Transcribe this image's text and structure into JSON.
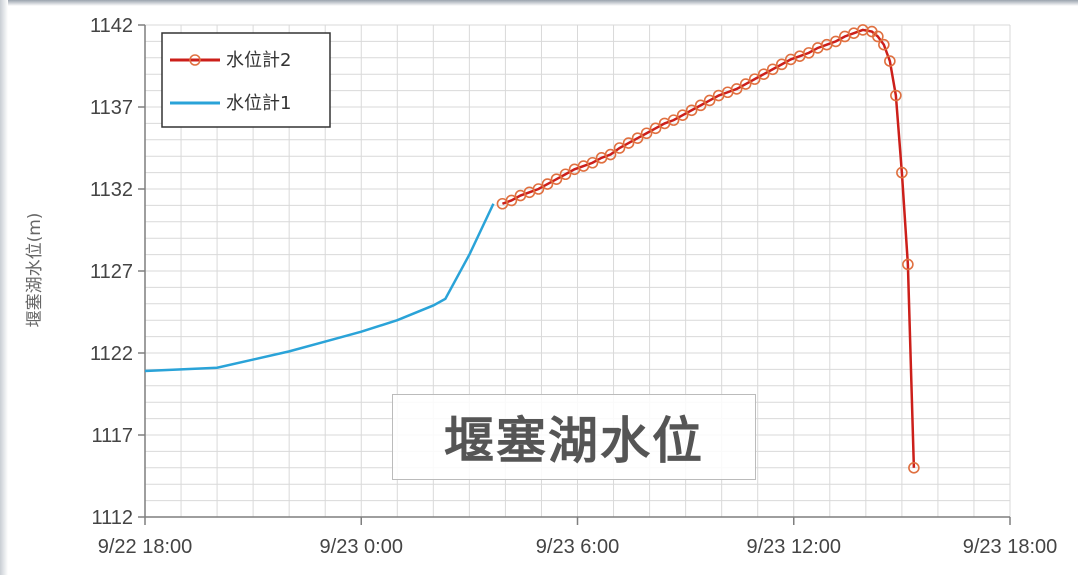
{
  "overlay_label": "堰塞湖水位",
  "colors": {
    "series1": "#2aa3d8",
    "series2": "#cc1f1a",
    "marker": "#e07040",
    "grid": "#d9d9d9",
    "axis": "#7f7f7f"
  },
  "chart_data": {
    "type": "line",
    "title": "",
    "xlabel": "",
    "ylabel": "堰塞湖水位(m)",
    "xlim": [
      "9/22 18:00",
      "9/23 18:00"
    ],
    "ylim": [
      1112,
      1142
    ],
    "x_tick_labels": [
      "9/22 18:00",
      "9/23 0:00",
      "9/23 6:00",
      "9/23 12:00",
      "9/23 18:00"
    ],
    "y_tick_labels": [
      "1142",
      "1137",
      "1132",
      "1127",
      "1122",
      "1117",
      "1112"
    ],
    "grid": true,
    "legend_position": "top-left",
    "series": [
      {
        "name": "水位計2",
        "marker": "circle",
        "x": [
          "9/23 3:55",
          "9/23 4:10",
          "9/23 4:25",
          "9/23 4:40",
          "9/23 4:55",
          "9/23 5:10",
          "9/23 5:25",
          "9/23 5:40",
          "9/23 5:55",
          "9/23 6:10",
          "9/23 6:25",
          "9/23 6:40",
          "9/23 6:55",
          "9/23 7:10",
          "9/23 7:25",
          "9/23 7:40",
          "9/23 7:55",
          "9/23 8:10",
          "9/23 8:25",
          "9/23 8:40",
          "9/23 8:55",
          "9/23 9:10",
          "9/23 9:25",
          "9/23 9:40",
          "9/23 9:55",
          "9/23 10:10",
          "9/23 10:25",
          "9/23 10:40",
          "9/23 10:55",
          "9/23 11:10",
          "9/23 11:25",
          "9/23 11:40",
          "9/23 11:55",
          "9/23 12:10",
          "9/23 12:25",
          "9/23 12:40",
          "9/23 12:55",
          "9/23 13:10",
          "9/23 13:25",
          "9/23 13:40",
          "9/23 13:55",
          "9/23 14:10",
          "9/23 14:20",
          "9/23 14:30",
          "9/23 14:40",
          "9/23 14:50",
          "9/23 15:00",
          "9/23 15:10",
          "9/23 15:20"
        ],
        "y": [
          1131.1,
          1131.3,
          1131.6,
          1131.8,
          1132.0,
          1132.3,
          1132.6,
          1132.9,
          1133.2,
          1133.4,
          1133.6,
          1133.9,
          1134.1,
          1134.5,
          1134.8,
          1135.1,
          1135.4,
          1135.7,
          1136.0,
          1136.2,
          1136.5,
          1136.8,
          1137.1,
          1137.4,
          1137.7,
          1137.9,
          1138.1,
          1138.4,
          1138.7,
          1139.0,
          1139.3,
          1139.6,
          1139.9,
          1140.1,
          1140.3,
          1140.6,
          1140.8,
          1141.0,
          1141.3,
          1141.5,
          1141.7,
          1141.6,
          1141.3,
          1140.8,
          1139.8,
          1137.7,
          1133.0,
          1127.4,
          1115.0
        ]
      },
      {
        "name": "水位計1",
        "marker": "none",
        "x": [
          "9/22 18:00",
          "9/22 19:00",
          "9/22 20:00",
          "9/22 21:00",
          "9/22 22:00",
          "9/22 23:00",
          "9/23 0:00",
          "9/23 1:00",
          "9/23 2:00",
          "9/23 2:20",
          "9/23 3:00",
          "9/23 3:40"
        ],
        "y": [
          1120.9,
          1121.0,
          1121.1,
          1121.6,
          1122.1,
          1122.7,
          1123.3,
          1124.0,
          1124.9,
          1125.3,
          1128.0,
          1131.1
        ]
      }
    ]
  }
}
